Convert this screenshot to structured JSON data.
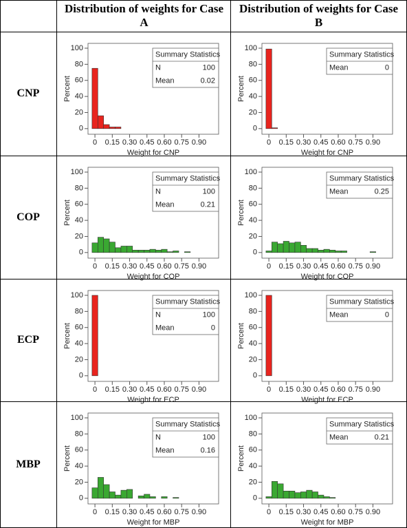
{
  "table": {
    "headers": [
      "Distribution of weights for Case A",
      "Distribution of weights for Case B"
    ],
    "rows": [
      {
        "label": "CNP",
        "charts": [
          {
            "type": "histogram",
            "ylabel": "Percent",
            "xlabel": "Weight for CNP",
            "color": "#e8241e",
            "bins": [
              -0.025,
              0.025,
              0.075,
              0.125,
              0.175,
              0.225
            ],
            "values": [
              75,
              16,
              5,
              2,
              2
            ],
            "xlim": [
              -0.06,
              1.07
            ],
            "ylim": [
              -7,
              106
            ],
            "xticks": [
              0,
              0.15,
              {
                "value": 0.3,
                "label": "0.30"
              },
              0.45,
              {
                "value": 0.6,
                "label": "0.60"
              },
              0.75,
              {
                "value": 0.9,
                "label": "0.90"
              }
            ],
            "yticks": [
              0,
              20,
              40,
              60,
              80,
              100
            ],
            "stats": {
              "title": "Summary Statistics",
              "rows": [
                {
                  "label": "N",
                  "value": 100
                },
                {
                  "label": "Mean",
                  "value": 0.02
                }
              ]
            }
          },
          {
            "type": "histogram",
            "ylabel": "Percent",
            "xlabel": "Weight for CNP",
            "color": "#e8241e",
            "bins": [
              -0.025,
              0.025,
              0.075
            ],
            "values": [
              99,
              1
            ],
            "xlim": [
              -0.06,
              1.07
            ],
            "ylim": [
              -7,
              106
            ],
            "xticks": [
              0,
              0.15,
              {
                "value": 0.3,
                "label": "0.30"
              },
              0.45,
              {
                "value": 0.6,
                "label": "0.60"
              },
              0.75,
              {
                "value": 0.9,
                "label": "0.90"
              }
            ],
            "yticks": [
              0,
              20,
              40,
              60,
              80,
              100
            ],
            "stats": {
              "title": "Summary Statistics",
              "rows": [
                {
                  "label": "Mean",
                  "value": 0
                }
              ]
            }
          }
        ]
      },
      {
        "label": "COP",
        "charts": [
          {
            "type": "histogram",
            "ylabel": "Percent",
            "xlabel": "Weight for COP",
            "color": "#3aa832",
            "bins": [
              -0.025,
              0.025,
              0.075,
              0.125,
              0.175,
              0.225,
              0.275,
              0.325,
              0.375,
              0.425,
              0.475,
              0.525,
              0.575,
              0.625,
              0.675,
              0.725,
              0.775,
              0.825
            ],
            "values": [
              12,
              19,
              17,
              13,
              6,
              8,
              8,
              3,
              3,
              3,
              4,
              3,
              4,
              1,
              2,
              0,
              1
            ],
            "xlim": [
              -0.06,
              1.07
            ],
            "ylim": [
              -7,
              106
            ],
            "xticks": [
              0,
              0.15,
              {
                "value": 0.3,
                "label": "0.30"
              },
              0.45,
              {
                "value": 0.6,
                "label": "0.60"
              },
              0.75,
              {
                "value": 0.9,
                "label": "0.90"
              }
            ],
            "yticks": [
              0,
              20,
              40,
              60,
              80,
              100
            ],
            "stats": {
              "title": "Summary Statistics",
              "rows": [
                {
                  "label": "N",
                  "value": 100
                },
                {
                  "label": "Mean",
                  "value": 0.21
                }
              ]
            }
          },
          {
            "type": "histogram",
            "ylabel": "Percent",
            "xlabel": "Weight for COP",
            "color": "#3aa832",
            "bins": [
              -0.025,
              0.025,
              0.075,
              0.125,
              0.175,
              0.225,
              0.275,
              0.325,
              0.375,
              0.425,
              0.475,
              0.525,
              0.575,
              0.625,
              0.675,
              0.725,
              0.775,
              0.825,
              0.875,
              0.925
            ],
            "values": [
              2,
              13,
              11,
              14,
              12,
              13,
              9,
              5,
              5,
              3,
              4,
              3,
              2,
              2,
              0,
              0,
              0,
              0,
              1
            ],
            "xlim": [
              -0.06,
              1.07
            ],
            "ylim": [
              -7,
              106
            ],
            "xticks": [
              0,
              0.15,
              {
                "value": 0.3,
                "label": "0.30"
              },
              0.45,
              {
                "value": 0.6,
                "label": "0.60"
              },
              0.75,
              {
                "value": 0.9,
                "label": "0.90"
              }
            ],
            "yticks": [
              0,
              20,
              40,
              60,
              80,
              100
            ],
            "stats": {
              "title": "Summary Statistics",
              "rows": [
                {
                  "label": "Mean",
                  "value": 0.25
                }
              ]
            }
          }
        ]
      },
      {
        "label": "ECP",
        "charts": [
          {
            "type": "histogram",
            "ylabel": "Percent",
            "xlabel": "Weight for ECP",
            "color": "#e8241e",
            "bins": [
              -0.025,
              0.025
            ],
            "values": [
              100
            ],
            "xlim": [
              -0.06,
              1.07
            ],
            "ylim": [
              -7,
              106
            ],
            "xticks": [
              0,
              0.15,
              {
                "value": 0.3,
                "label": "0.30"
              },
              0.45,
              {
                "value": 0.6,
                "label": "0.60"
              },
              0.75,
              {
                "value": 0.9,
                "label": "0.90"
              }
            ],
            "yticks": [
              0,
              20,
              40,
              60,
              80,
              100
            ],
            "stats": {
              "title": "Summary Statistics",
              "rows": [
                {
                  "label": "N",
                  "value": 100
                },
                {
                  "label": "Mean",
                  "value": 0
                }
              ]
            }
          },
          {
            "type": "histogram",
            "ylabel": "Percent",
            "xlabel": "Weight for ECP",
            "color": "#e8241e",
            "bins": [
              -0.025,
              0.025
            ],
            "values": [
              100
            ],
            "xlim": [
              -0.06,
              1.07
            ],
            "ylim": [
              -7,
              106
            ],
            "xticks": [
              0,
              0.15,
              {
                "value": 0.3,
                "label": "0.30"
              },
              0.45,
              {
                "value": 0.6,
                "label": "0.60"
              },
              0.75,
              {
                "value": 0.9,
                "label": "0.90"
              }
            ],
            "yticks": [
              0,
              20,
              40,
              60,
              80,
              100
            ],
            "stats": {
              "title": "Summary Statistics",
              "rows": [
                {
                  "label": "Mean",
                  "value": 0
                }
              ]
            }
          }
        ]
      },
      {
        "label": "MBP",
        "charts": [
          {
            "type": "histogram",
            "ylabel": "Percent",
            "xlabel": "Weight for MBP",
            "color": "#3aa832",
            "bins": [
              -0.025,
              0.025,
              0.075,
              0.125,
              0.175,
              0.225,
              0.275,
              0.325,
              0.375,
              0.425,
              0.475,
              0.525,
              0.575,
              0.625,
              0.675,
              0.725
            ],
            "values": [
              13,
              26,
              17,
              8,
              4,
              10,
              11,
              0,
              3,
              5,
              2,
              0,
              2,
              0,
              1
            ],
            "xlim": [
              -0.06,
              1.07
            ],
            "ylim": [
              -7,
              106
            ],
            "xticks": [
              0,
              0.15,
              {
                "value": 0.3,
                "label": "0.30"
              },
              0.45,
              {
                "value": 0.6,
                "label": "0.60"
              },
              0.75,
              {
                "value": 0.9,
                "label": "0.90"
              }
            ],
            "yticks": [
              0,
              20,
              40,
              60,
              80,
              100
            ],
            "stats": {
              "title": "Summary Statistics",
              "rows": [
                {
                  "label": "N",
                  "value": 100
                },
                {
                  "label": "Mean",
                  "value": 0.16
                }
              ]
            }
          },
          {
            "type": "histogram",
            "ylabel": "Percent",
            "xlabel": "Weight for MBP",
            "color": "#3aa832",
            "bins": [
              -0.025,
              0.025,
              0.075,
              0.125,
              0.175,
              0.225,
              0.275,
              0.325,
              0.375,
              0.425,
              0.475,
              0.525,
              0.575
            ],
            "values": [
              2,
              21,
              18,
              9,
              9,
              7,
              8,
              10,
              8,
              4,
              2,
              1
            ],
            "xlim": [
              -0.06,
              1.07
            ],
            "ylim": [
              -7,
              106
            ],
            "xticks": [
              0,
              0.15,
              {
                "value": 0.3,
                "label": "0.30"
              },
              0.45,
              {
                "value": 0.6,
                "label": "0.60"
              },
              0.75,
              {
                "value": 0.9,
                "label": "0.90"
              }
            ],
            "yticks": [
              0,
              20,
              40,
              60,
              80,
              100
            ],
            "stats": {
              "title": "Summary Statistics",
              "rows": [
                {
                  "label": "Mean",
                  "value": 0.21
                }
              ]
            }
          }
        ]
      }
    ]
  }
}
